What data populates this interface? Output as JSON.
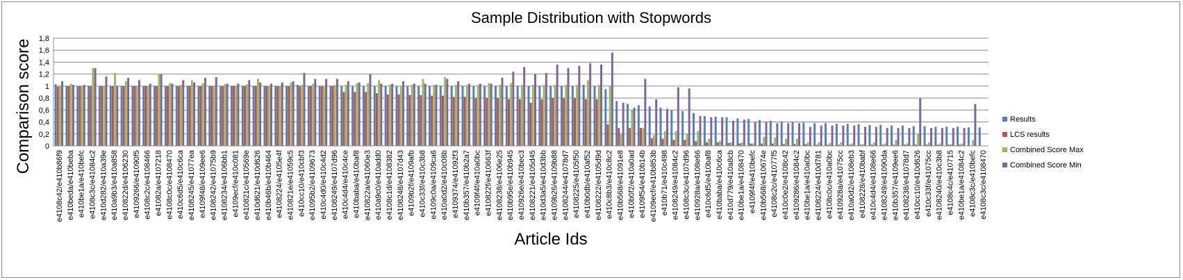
{
  "chart_data": {
    "type": "bar",
    "title": "Sample Distribution with Stopwords",
    "xlabel": "Article Ids",
    "ylabel": "Comparison score",
    "ylim": [
      0,
      1.8
    ],
    "ytick_labels": [
      "0",
      "0,2",
      "0,4",
      "0,6",
      "0,8",
      "1",
      "1,2",
      "1,4",
      "1,6",
      "1,8"
    ],
    "grid": true,
    "legend_position": "right",
    "categories": [
      "e4108c42/e410b86f9",
      "e410beda/e410beba",
      "e410be1a/e410befc",
      "e4108c3c/e41084c2",
      "e410d282/e410a39e",
      "e410a9b3/e410a858",
      "e410822d/e4106230",
      "e4109266/e41090f5",
      "e4108c2c/e4108466",
      "e41082a/e4107218",
      "e4108c0c/e4108470",
      "e410c6d5/e410c6ca",
      "e4108245/e41077ea",
      "e4109f48/e4109ee6",
      "e4108242/e41075b9",
      "e4108234/e4106bb1",
      "e4109ecf/e410c081",
      "e410821c/e410569e",
      "e410d621/e410d626",
      "e410b46b/e410b464",
      "e4108224/e4105e4f",
      "e410821e/e41059c5",
      "e410cc10/e410cbf3",
      "e41095b2/e4109673",
      "e410c4d0/e410c4d2",
      "e4108249/e4107d96",
      "e410c4d4/e410c4ce",
      "e410baba/e410baf8",
      "e410822a/e41060e3",
      "e410a9c0/e410add0",
      "e4108c1d/e4108382",
      "e4108248/e4107d43",
      "e4109b2f/e4109afb",
      "e410c33f/e410c3b8",
      "e4109c0a/e4109ca6",
      "e410a0d2/e410c08b",
      "e4109374/e41092f3",
      "e410b357/e410b2a7",
      "e4109f4f/e410a0bc",
      "e410822f/e410663f",
      "e4108238/e4106e25",
      "e410b95e/e410b945",
      "e410926e/e410bec3",
      "e4108221/e4105d45",
      "e410d3a5/e410d3bb",
      "e4109b26/e4109b88",
      "e4108244/e41078d7",
      "e4108225/e4105f50",
      "e410b0db/e410af52",
      "e4108222/e4105d9d",
      "e410c8b3/e410c8c2",
      "e410b568/e41091e8",
      "e410b0f2/e410a0ad",
      "e4109f54/e410b14b",
      "e4109ecf/e410b853b",
      "e410b71/e410c498",
      "e4108249/e41084c2",
      "e4108c3c/e4107d96",
      "e410928a/e4108e66",
      "e410c6d5/e410baf8",
      "e410baba/e410c6ca",
      "e410d779/e410a8cb",
      "e410be1a/e4108470",
      "e4109f4f/e410befc",
      "e410b568/e410674e",
      "e4108c2c/e41077f5",
      "e410c0e2/e4108c42",
      "e4109286/e41084c2",
      "e410be1a/e410a0bc",
      "e4108224/e410d781",
      "e4108c0c/e410a0bc",
      "e410928a/e41075cc",
      "e410a0d2/e4108eb3",
      "e4108228/e410babf",
      "e410c4d4/e4108e66",
      "e4108249/e41090da",
      "e410b357/e4109ee6",
      "e4108238/e41078d7",
      "e410cc10/e410d626",
      "e410c33f/e41075cc",
      "e4108240/e410c3b8",
      "e4108c4c/e410715",
      "e410be1a/e41084c2",
      "e4108c3c/e410befc",
      "e4108c3c/e4108470"
    ],
    "series": [
      {
        "name": "Results",
        "color": "#4f81bd",
        "values": [
          1.03,
          1.0,
          1.0,
          1.0,
          1.0,
          1.0,
          1.0,
          1.0,
          1.0,
          1.0,
          1.0,
          1.0,
          1.0,
          1.0,
          1.0,
          1.0,
          1.0,
          1.0,
          1.0,
          1.0,
          1.0,
          1.0,
          1.02,
          1.0,
          1.0,
          1.0,
          1.0,
          1.0,
          1.0,
          1.0,
          1.0,
          1.0,
          1.0,
          1.0,
          1.0,
          1.0,
          1.0,
          1.0,
          1.0,
          1.0,
          1.0,
          1.0,
          1.0,
          1.0,
          1.0,
          1.0,
          1.0,
          1.0,
          1.02,
          1.0,
          0.95,
          0.75,
          0.7,
          0.68,
          0.66,
          0.64,
          0.6,
          0.58,
          0.55,
          0.5,
          0.49,
          0.48,
          0.46,
          0.45,
          0.43,
          0.42,
          0.41,
          0.4,
          0.39,
          0.38,
          0.38,
          0.37,
          0.37,
          0.36,
          0.35,
          0.35,
          0.34,
          0.34,
          0.33,
          0.33,
          0.32,
          0.32,
          0.32,
          0.31,
          0.31
        ]
      },
      {
        "name": "LCS results",
        "color": "#c0504d",
        "values": [
          0.99,
          1.0,
          1.0,
          1.0,
          1.0,
          1.0,
          1.0,
          1.0,
          1.0,
          1.0,
          1.0,
          1.0,
          1.0,
          1.0,
          1.0,
          1.0,
          1.0,
          1.0,
          1.0,
          1.0,
          1.0,
          1.0,
          1.0,
          1.0,
          1.0,
          1.0,
          0.9,
          0.9,
          0.9,
          0.88,
          0.86,
          0.86,
          0.85,
          0.85,
          0.84,
          0.84,
          0.82,
          0.82,
          0.8,
          0.8,
          0.8,
          0.78,
          0.78,
          0.72,
          0.78,
          0.8,
          0.8,
          0.8,
          0.78,
          0.78,
          0.36,
          0.3,
          0.3,
          0.3,
          0.13,
          0.12,
          0.1,
          0.1,
          0.08,
          0.06,
          0.06,
          0.05,
          0.04,
          0.04,
          0.04,
          0.04,
          0.03,
          0.03,
          0.03,
          0.02,
          0.02,
          0.02,
          0.02,
          0.02,
          0.02,
          0.02,
          0.02,
          0.02,
          0.02,
          0.02,
          0.02,
          0.02,
          0.02,
          0.0,
          0.0
        ]
      },
      {
        "name": "Combined Score Max",
        "color": "#9bbb59",
        "values": [
          1.0,
          1.04,
          1.0,
          1.3,
          1.0,
          1.22,
          1.08,
          1.0,
          1.0,
          1.2,
          1.05,
          1.02,
          1.1,
          1.05,
          1.0,
          1.03,
          1.0,
          1.03,
          1.12,
          1.0,
          1.0,
          1.06,
          1.02,
          1.04,
          1.0,
          1.02,
          1.02,
          1.05,
          1.05,
          1.1,
          1.02,
          1.0,
          1.02,
          1.12,
          1.02,
          1.15,
          1.02,
          1.02,
          1.02,
          1.05,
          1.02,
          1.05,
          1.02,
          1.02,
          1.02,
          1.02,
          1.02,
          1.02,
          1.1,
          1.02,
          1.0,
          0.2,
          0.6,
          0.3,
          0.18,
          0.25,
          0.25,
          0.2,
          0.25,
          0.12,
          0.08,
          0.06,
          0.06,
          0.04,
          0.15,
          0.14,
          0.12,
          0.12,
          0.06,
          0.06,
          0.05,
          0.06,
          0.04,
          0.03,
          0.06,
          0.04,
          0.1,
          0.04,
          0.2,
          0.06,
          0.04,
          0.03,
          0.04,
          0.1,
          0.0
        ]
      },
      {
        "name": "Combined Score Min",
        "color": "#8064a2",
        "values": [
          1.08,
          1.02,
          1.02,
          1.3,
          1.16,
          1.0,
          1.14,
          1.1,
          1.04,
          1.2,
          1.04,
          1.1,
          1.06,
          1.14,
          1.15,
          1.04,
          1.04,
          1.1,
          1.06,
          1.04,
          1.06,
          1.08,
          1.22,
          1.12,
          1.12,
          1.12,
          1.08,
          1.06,
          1.2,
          1.04,
          1.04,
          1.08,
          1.04,
          1.04,
          1.02,
          1.12,
          1.08,
          1.04,
          1.04,
          1.04,
          1.14,
          1.24,
          1.32,
          1.2,
          1.22,
          1.36,
          1.3,
          1.34,
          1.38,
          1.36,
          1.56,
          0.72,
          0.64,
          1.12,
          0.78,
          0.62,
          0.98,
          0.96,
          0.5,
          0.48,
          0.48,
          0.42,
          0.44,
          0.4,
          0.4,
          0.38,
          0.38,
          0.38,
          0.32,
          0.34,
          0.34,
          0.34,
          0.34,
          0.32,
          0.32,
          0.3,
          0.3,
          0.3,
          0.8,
          0.3,
          0.3,
          0.3,
          0.3,
          0.7,
          0.0
        ]
      }
    ]
  }
}
